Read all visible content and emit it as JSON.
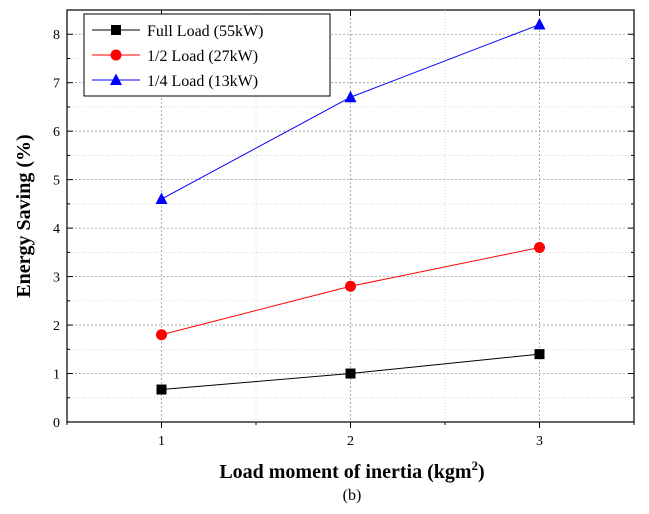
{
  "chart_data": {
    "type": "line",
    "x": [
      1,
      2,
      3
    ],
    "x_ticks": [
      "1",
      "2",
      "3"
    ],
    "y_ticks": [
      "0",
      "1",
      "2",
      "3",
      "4",
      "5",
      "6",
      "7",
      "8"
    ],
    "xlim": [
      0.5,
      3.5
    ],
    "ylim": [
      0,
      8.5
    ],
    "xlabel_prefix": "Load moment of inertia (kgm",
    "xlabel_sup": "2",
    "xlabel_suffix": ")",
    "ylabel": "Energy Saving (%)",
    "caption": "(b)",
    "grid": true,
    "legend_position": "top-left",
    "series": [
      {
        "name": "Full Load (55kW)",
        "color": "#000000",
        "marker": "square",
        "values": [
          0.67,
          1.0,
          1.4
        ]
      },
      {
        "name": "1/2 Load (27kW)",
        "color": "#ff0000",
        "marker": "circle",
        "values": [
          1.8,
          2.8,
          3.6
        ]
      },
      {
        "name": "1/4 Load (13kW)",
        "color": "#0000ff",
        "marker": "triangle",
        "values": [
          4.6,
          6.7,
          8.2
        ]
      }
    ]
  }
}
